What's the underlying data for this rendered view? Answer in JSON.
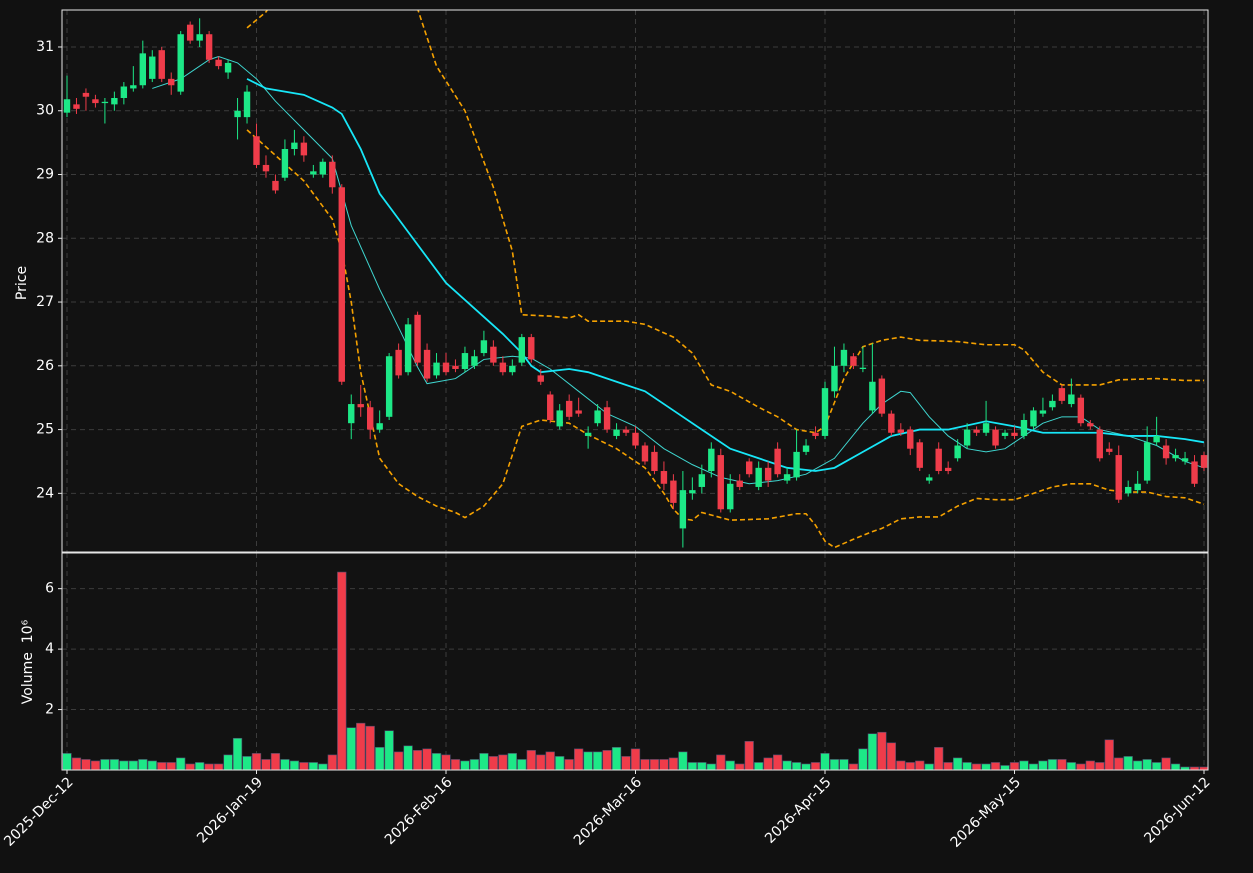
{
  "chart_data": {
    "type": "candlestick",
    "ylabel": "Price",
    "ylim": [
      23.08,
      31.58
    ],
    "yticks": [
      24,
      25,
      26,
      27,
      28,
      29,
      30,
      31
    ],
    "grid": true,
    "up_color": "#1de887",
    "down_color": "#ef3c4a",
    "categories": [
      "2025-Dec-12",
      null,
      null,
      null,
      null,
      null,
      null,
      null,
      null,
      null,
      null,
      null,
      null,
      null,
      null,
      null,
      null,
      null,
      null,
      null,
      "2026-Jan-19",
      null,
      null,
      null,
      null,
      null,
      null,
      null,
      null,
      null,
      null,
      null,
      null,
      null,
      null,
      null,
      null,
      null,
      null,
      null,
      "2026-Feb-16",
      null,
      null,
      null,
      null,
      null,
      null,
      null,
      null,
      null,
      null,
      null,
      null,
      null,
      null,
      null,
      null,
      null,
      null,
      null,
      "2026-Mar-16",
      null,
      null,
      null,
      null,
      null,
      null,
      null,
      null,
      null,
      null,
      null,
      null,
      null,
      null,
      null,
      null,
      null,
      null,
      null,
      "2026-Apr-15",
      null,
      null,
      null,
      null,
      null,
      null,
      null,
      null,
      null,
      null,
      null,
      null,
      null,
      null,
      null,
      null,
      null,
      null,
      null,
      "2026-May-15",
      null,
      null,
      null,
      null,
      null,
      null,
      null,
      null,
      null,
      null,
      null,
      null,
      null,
      null,
      null,
      null,
      null,
      null,
      null,
      "2026-Jun-12"
    ],
    "open": [
      29.97,
      30.1,
      30.28,
      30.18,
      30.12,
      30.1,
      30.2,
      30.35,
      30.4,
      30.5,
      30.95,
      30.5,
      30.3,
      31.35,
      31.1,
      31.2,
      30.8,
      30.6,
      29.9,
      29.9,
      29.6,
      29.15,
      28.9,
      28.95,
      29.4,
      29.5,
      29.0,
      29.0,
      29.2,
      28.8,
      25.1,
      25.4,
      25.35,
      25.0,
      25.2,
      26.25,
      25.9,
      26.8,
      26.25,
      25.85,
      26.05,
      26.0,
      25.95,
      26.0,
      26.2,
      26.3,
      26.05,
      25.9,
      26.05,
      26.45,
      25.85,
      25.55,
      25.05,
      25.45,
      25.3,
      24.9,
      25.1,
      25.35,
      24.9,
      25.0,
      24.95,
      24.75,
      24.65,
      24.35,
      24.2,
      23.45,
      24.0,
      24.1,
      24.35,
      24.6,
      23.75,
      24.2,
      24.5,
      24.1,
      24.4,
      24.7,
      24.2,
      24.25,
      24.65,
      24.95,
      24.9,
      25.6,
      26.0,
      26.15,
      25.95,
      25.3,
      25.8,
      25.25,
      25.0,
      25.0,
      24.8,
      24.2,
      24.7,
      24.4,
      24.55,
      24.75,
      25.0,
      24.95,
      25.0,
      24.9,
      24.95,
      24.9,
      25.05,
      25.25,
      25.35,
      25.65,
      25.4,
      25.5,
      25.1,
      25.0,
      24.7,
      24.6,
      24.0,
      24.05,
      24.2,
      24.8,
      24.75,
      24.55,
      24.5,
      24.5,
      24.6
    ],
    "high": [
      30.55,
      30.2,
      30.35,
      30.25,
      30.2,
      30.3,
      30.45,
      30.7,
      31.1,
      30.95,
      31.0,
      30.6,
      31.25,
      31.4,
      31.45,
      31.25,
      30.85,
      30.8,
      30.2,
      30.4,
      29.8,
      29.3,
      29.0,
      29.55,
      29.7,
      29.6,
      29.15,
      29.25,
      29.3,
      28.85,
      25.55,
      25.7,
      25.45,
      25.3,
      26.2,
      26.35,
      26.75,
      26.85,
      26.35,
      26.2,
      26.2,
      26.1,
      26.3,
      26.25,
      26.55,
      26.4,
      26.15,
      26.1,
      26.5,
      26.5,
      25.95,
      25.6,
      25.4,
      25.55,
      25.5,
      25.05,
      25.4,
      25.45,
      25.1,
      25.05,
      25.05,
      24.8,
      24.75,
      24.5,
      24.3,
      24.35,
      24.25,
      24.45,
      24.8,
      24.7,
      24.3,
      24.3,
      24.55,
      24.5,
      24.5,
      24.8,
      24.4,
      25.0,
      24.85,
      25.05,
      25.75,
      26.3,
      26.35,
      26.2,
      26.3,
      26.35,
      25.85,
      25.3,
      25.1,
      25.05,
      24.85,
      24.3,
      24.8,
      24.5,
      24.85,
      25.1,
      25.05,
      25.45,
      25.05,
      25.0,
      25.05,
      25.25,
      25.35,
      25.5,
      25.55,
      25.7,
      25.8,
      25.55,
      25.15,
      25.05,
      24.8,
      24.75,
      24.2,
      24.35,
      25.05,
      25.2,
      24.85,
      24.7,
      24.65,
      24.6,
      24.65
    ],
    "low": [
      29.9,
      29.95,
      30.0,
      30.05,
      29.8,
      30.0,
      30.1,
      30.3,
      30.35,
      30.45,
      30.45,
      30.25,
      30.25,
      31.05,
      31.0,
      30.75,
      30.65,
      30.5,
      29.55,
      29.8,
      29.1,
      28.95,
      28.7,
      28.9,
      29.3,
      29.2,
      28.95,
      28.95,
      28.7,
      25.7,
      24.85,
      25.2,
      24.85,
      24.95,
      25.15,
      25.8,
      25.85,
      26.0,
      25.75,
      25.8,
      25.85,
      25.9,
      25.9,
      25.95,
      26.15,
      26.0,
      25.85,
      25.85,
      26.0,
      26.05,
      25.7,
      25.1,
      25.0,
      25.15,
      25.2,
      24.7,
      25.05,
      24.95,
      24.85,
      24.9,
      24.7,
      24.45,
      24.3,
      24.05,
      23.75,
      23.15,
      23.9,
      24.0,
      24.25,
      23.7,
      23.7,
      24.05,
      24.25,
      24.05,
      24.1,
      24.25,
      24.15,
      24.2,
      24.6,
      24.85,
      24.85,
      25.5,
      25.9,
      25.95,
      25.9,
      25.25,
      25.2,
      24.9,
      24.9,
      24.6,
      24.35,
      24.15,
      24.3,
      24.3,
      24.5,
      24.7,
      24.9,
      24.9,
      24.7,
      24.85,
      24.85,
      24.85,
      25.0,
      25.2,
      25.3,
      25.4,
      25.35,
      25.05,
      25.0,
      24.5,
      24.6,
      23.85,
      23.95,
      24.0,
      24.15,
      24.75,
      24.45,
      24.5,
      24.45,
      24.1,
      24.35
    ],
    "close": [
      30.18,
      30.03,
      30.22,
      30.12,
      30.14,
      30.2,
      30.38,
      30.4,
      30.9,
      30.85,
      30.5,
      30.4,
      31.2,
      31.1,
      31.2,
      30.8,
      30.7,
      30.75,
      30.0,
      30.3,
      29.15,
      29.05,
      28.75,
      29.4,
      29.5,
      29.3,
      29.05,
      29.2,
      28.8,
      25.75,
      25.4,
      25.35,
      25.0,
      25.1,
      26.15,
      25.85,
      26.65,
      26.05,
      25.8,
      26.05,
      25.9,
      25.95,
      26.2,
      26.15,
      26.4,
      26.05,
      25.9,
      26.0,
      26.45,
      26.1,
      25.75,
      25.15,
      25.3,
      25.2,
      25.25,
      24.95,
      25.3,
      25.0,
      25.0,
      24.95,
      24.75,
      24.5,
      24.35,
      24.15,
      23.85,
      24.05,
      24.05,
      24.3,
      24.7,
      23.75,
      24.15,
      24.1,
      24.3,
      24.4,
      24.2,
      24.3,
      24.3,
      24.65,
      24.75,
      24.9,
      25.65,
      26.0,
      26.25,
      26.0,
      25.97,
      25.75,
      25.25,
      24.95,
      24.95,
      24.7,
      24.4,
      24.25,
      24.35,
      24.35,
      24.75,
      25.0,
      24.95,
      25.1,
      24.75,
      24.95,
      24.9,
      25.15,
      25.3,
      25.3,
      25.45,
      25.45,
      25.55,
      25.1,
      25.05,
      24.55,
      24.65,
      23.9,
      24.1,
      24.15,
      24.8,
      24.9,
      24.55,
      24.6,
      24.55,
      24.15,
      24.4
    ],
    "overlays": [
      {
        "color": "#3fd6d0",
        "width": 1,
        "dash": false,
        "x": [
          9,
          12,
          15,
          16,
          18,
          20,
          22,
          25,
          28,
          30,
          33,
          35,
          37,
          38,
          41,
          44,
          47,
          49,
          51,
          54,
          57,
          60,
          63,
          66,
          69,
          72,
          75,
          78,
          81,
          84,
          86,
          88,
          89,
          91,
          93,
          95,
          97,
          99,
          101,
          103,
          105,
          107,
          109,
          112,
          115,
          118,
          120
        ],
        "values": [
          30.35,
          30.5,
          30.8,
          30.85,
          30.75,
          30.5,
          30.15,
          29.7,
          29.25,
          28.2,
          27.2,
          26.6,
          25.98,
          25.72,
          25.8,
          26.1,
          26.15,
          26.12,
          25.95,
          25.6,
          25.25,
          25.05,
          24.7,
          24.45,
          24.25,
          24.15,
          24.2,
          24.3,
          24.55,
          25.1,
          25.4,
          25.6,
          25.58,
          25.2,
          24.9,
          24.7,
          24.65,
          24.7,
          24.9,
          25.1,
          25.2,
          25.2,
          25.0,
          24.9,
          24.75,
          24.5,
          24.4
        ]
      },
      {
        "color": "#17e6f7",
        "width": 1.8,
        "dash": false,
        "x": [
          19,
          21,
          25,
          28,
          29,
          31,
          33,
          36,
          40,
          43,
          46,
          48,
          49,
          50,
          53,
          55,
          58,
          61,
          64,
          67,
          70,
          73,
          76,
          79,
          81,
          84,
          87,
          90,
          93,
          97,
          100,
          103,
          106,
          109,
          112,
          115,
          118,
          120
        ],
        "values": [
          30.5,
          30.35,
          30.25,
          30.05,
          29.95,
          29.4,
          28.7,
          28.1,
          27.3,
          26.9,
          26.5,
          26.2,
          26.0,
          25.9,
          25.95,
          25.9,
          25.75,
          25.6,
          25.3,
          25.0,
          24.7,
          24.55,
          24.4,
          24.35,
          24.4,
          24.65,
          24.9,
          25.0,
          25.0,
          25.13,
          25.05,
          24.95,
          24.95,
          24.95,
          24.9,
          24.9,
          24.85,
          24.8
        ]
      },
      {
        "color": "#f5a100",
        "width": 1.6,
        "dash": true,
        "x": [
          19,
          21,
          23,
          30,
          36,
          37,
          39,
          42,
          45,
          47,
          48,
          51,
          53,
          54,
          55,
          59,
          61,
          64,
          66,
          68,
          70,
          73,
          75,
          77,
          79,
          80,
          82,
          84,
          86,
          88,
          90,
          94,
          97,
          100,
          101,
          103,
          105,
          106,
          109,
          111,
          115,
          118,
          120
        ],
        "values": [
          31.3,
          31.55,
          32.0,
          32.5,
          32.0,
          31.6,
          30.7,
          30.0,
          28.8,
          27.8,
          26.8,
          26.78,
          26.75,
          26.8,
          26.7,
          26.7,
          26.65,
          26.45,
          26.2,
          25.7,
          25.6,
          25.35,
          25.2,
          25.0,
          24.95,
          25.05,
          25.8,
          26.3,
          26.4,
          26.45,
          26.4,
          26.38,
          26.33,
          26.33,
          26.25,
          25.9,
          25.7,
          25.7,
          25.7,
          25.78,
          25.8,
          25.77,
          25.77
        ]
      },
      {
        "color": "#f5a100",
        "width": 1.6,
        "dash": true,
        "x": [
          19,
          22,
          25,
          28,
          29,
          30,
          31,
          33,
          35,
          37,
          39,
          41,
          42,
          44,
          46,
          48,
          50,
          53,
          55,
          58,
          61,
          63,
          64,
          65,
          66,
          67,
          70,
          74,
          77,
          78,
          79,
          80,
          81,
          83,
          85,
          86,
          88,
          90,
          92,
          94,
          96,
          98,
          100,
          102,
          104,
          106,
          108,
          110,
          112,
          114,
          116,
          118,
          120
        ],
        "values": [
          29.7,
          29.3,
          28.9,
          28.3,
          27.8,
          27.0,
          25.9,
          24.55,
          24.15,
          23.95,
          23.8,
          23.7,
          23.62,
          23.8,
          24.15,
          25.05,
          25.15,
          25.1,
          24.92,
          24.7,
          24.4,
          24.0,
          23.75,
          23.6,
          23.58,
          23.7,
          23.58,
          23.6,
          23.68,
          23.68,
          23.5,
          23.25,
          23.15,
          23.28,
          23.4,
          23.45,
          23.6,
          23.63,
          23.63,
          23.8,
          23.92,
          23.9,
          23.9,
          24.0,
          24.1,
          24.15,
          24.15,
          24.05,
          24.02,
          24.02,
          23.95,
          23.93,
          23.83
        ]
      }
    ],
    "volume": {
      "ylabel": "Volume  10⁶",
      "ylim": [
        0,
        7.18
      ],
      "yticks": [
        2,
        4,
        6
      ],
      "values": [
        0.55,
        0.4,
        0.35,
        0.3,
        0.35,
        0.35,
        0.3,
        0.3,
        0.35,
        0.3,
        0.25,
        0.25,
        0.4,
        0.2,
        0.25,
        0.2,
        0.2,
        0.5,
        1.05,
        0.45,
        0.55,
        0.35,
        0.55,
        0.35,
        0.3,
        0.25,
        0.25,
        0.2,
        0.5,
        6.55,
        1.4,
        1.55,
        1.45,
        0.75,
        1.3,
        0.6,
        0.8,
        0.65,
        0.7,
        0.55,
        0.5,
        0.35,
        0.3,
        0.35,
        0.55,
        0.45,
        0.5,
        0.55,
        0.35,
        0.65,
        0.5,
        0.6,
        0.45,
        0.35,
        0.7,
        0.6,
        0.6,
        0.65,
        0.75,
        0.45,
        0.7,
        0.35,
        0.35,
        0.35,
        0.4,
        0.6,
        0.25,
        0.25,
        0.2,
        0.5,
        0.3,
        0.2,
        0.95,
        0.25,
        0.4,
        0.5,
        0.3,
        0.25,
        0.2,
        0.25,
        0.55,
        0.35,
        0.35,
        0.2,
        0.7,
        1.2,
        1.25,
        0.9,
        0.3,
        0.25,
        0.3,
        0.2,
        0.75,
        0.25,
        0.4,
        0.25,
        0.2,
        0.2,
        0.25,
        0.15,
        0.25,
        0.3,
        0.2,
        0.3,
        0.35,
        0.35,
        0.25,
        0.2,
        0.3,
        0.25,
        1.0,
        0.4,
        0.45,
        0.3,
        0.35,
        0.25,
        0.4,
        0.2,
        0.1,
        0.1,
        0.1
      ]
    }
  }
}
